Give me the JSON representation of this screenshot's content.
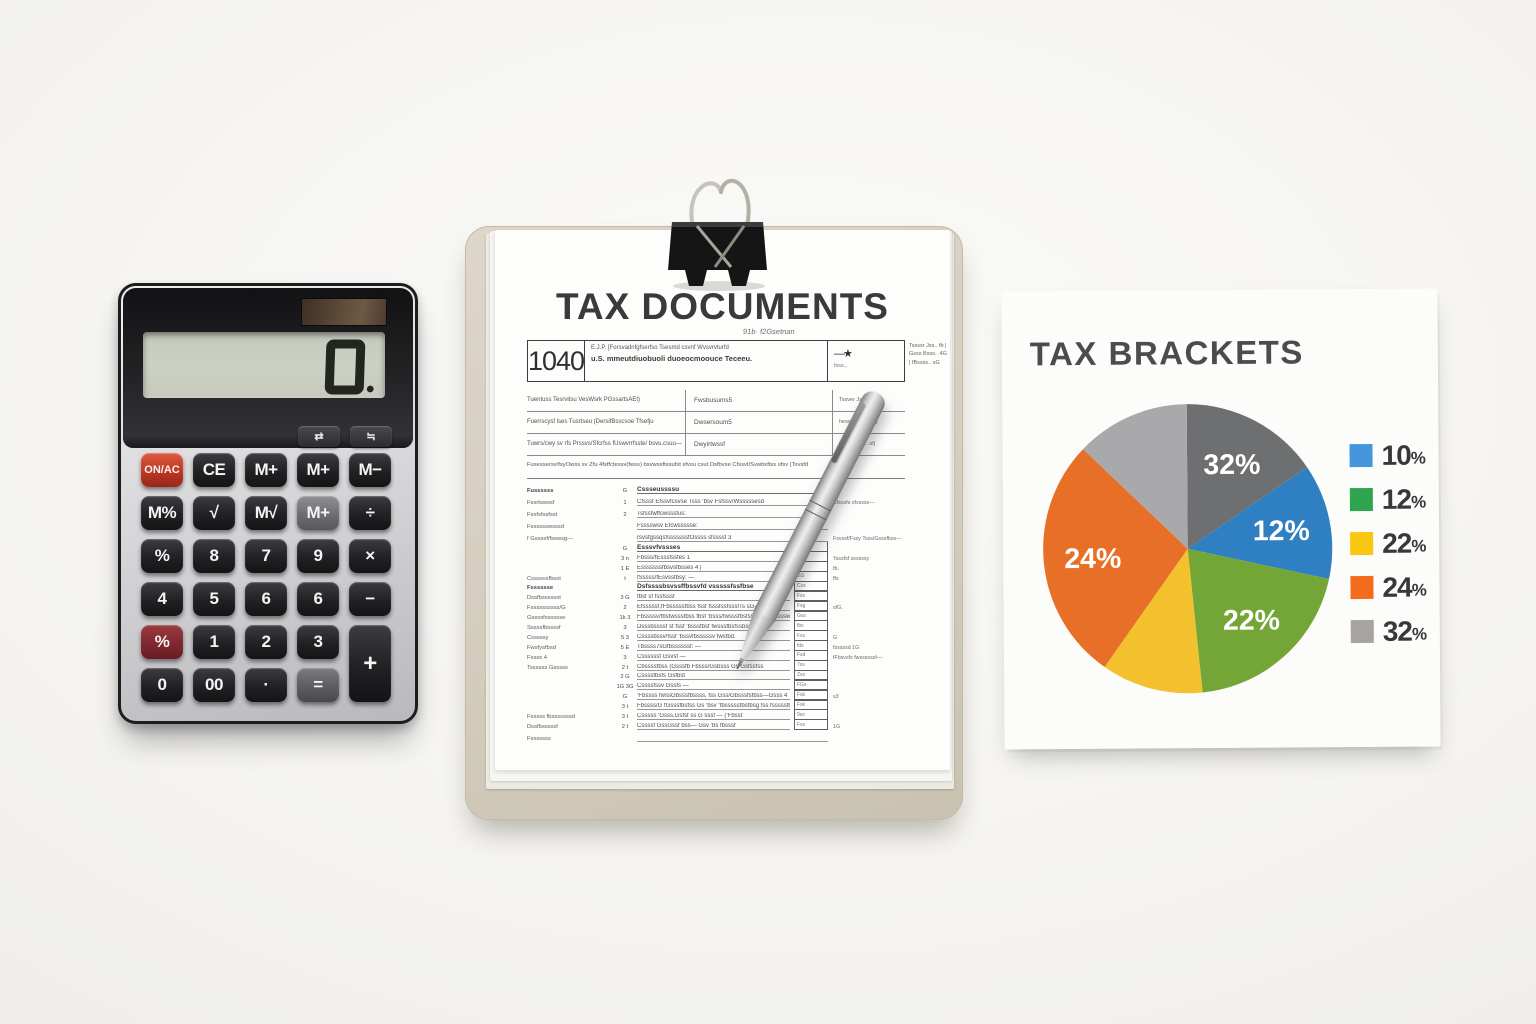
{
  "scene": {
    "background": "#f5f4f1",
    "accent_colors": {
      "calc_red": "#bd3723",
      "board_tan": "#d4cdbe"
    }
  },
  "calculator": {
    "display_value": "0.",
    "small_keys": [
      {
        "label": "⇄"
      },
      {
        "label": "≒"
      }
    ],
    "keys": [
      {
        "label": "ON/AC",
        "cls": "onac"
      },
      {
        "label": "CE"
      },
      {
        "label": "M+"
      },
      {
        "label": "M+"
      },
      {
        "label": "M−"
      },
      {
        "label": "M%"
      },
      {
        "label": "√"
      },
      {
        "label": "M√"
      },
      {
        "label": "M+",
        "cls": "lite"
      },
      {
        "label": "÷"
      },
      {
        "label": "%"
      },
      {
        "label": "8"
      },
      {
        "label": "7"
      },
      {
        "label": "9"
      },
      {
        "label": "×"
      },
      {
        "label": "4"
      },
      {
        "label": "5"
      },
      {
        "label": "6"
      },
      {
        "label": "6"
      },
      {
        "label": "−"
      },
      {
        "label": "%",
        "cls": "maroon"
      },
      {
        "label": "1"
      },
      {
        "label": "2"
      },
      {
        "label": "3"
      },
      {
        "label": "+",
        "cls": "tall"
      },
      {
        "label": "0"
      },
      {
        "label": "00"
      },
      {
        "label": "·"
      },
      {
        "label": "=",
        "cls": "eq"
      }
    ]
  },
  "document": {
    "title": "TAX DOCUMENTS",
    "subtitle": "91b· f2Gsetnan",
    "form_number": "1040",
    "header_line1": "E.J.P.  [Forsvadnfgfserfso Tsesmd csvnf Wvsvrvturfd",
    "header_line2": "u.S.  mmeutdiuobuoli duoeocmoouce  Teceeu.",
    "header_note": "t sss,",
    "header_star": "—★",
    "header_star_note": "fsss.,",
    "corner_note": "Tssssr Jss.. fb  |  Gsss Bsss.. 4G  |  fBssss.. sG",
    "name_rows": [
      {
        "c1": "Tuentuss Tesrvitsu VesWsrk PGssartsAEt)",
        "c2": "Fwsbusums5",
        "c3": "Tssver Jses.  45"
      },
      {
        "c1": "Fuerrscysf lses Tusrtseu (DersifBsscsoe Tfsefju",
        "c2": "Dwsersoum5",
        "c3": "hess Bsss...  45j"
      },
      {
        "c1": "Tuwrs/cwy sv rfs Prssvs/Sfcrfss fUswvrrfsste/ bsvu.csuu—",
        "c2": "Dwyirtwssf",
        "c3": "fBsswfcss...  sfj"
      }
    ],
    "long_row": "Fusessersv/fsyOwss sv Zfu 4fsffctessv(fwss) bsvwssftssufst sfvsu csut    Dsfbvse Cfssvt/Svwbsftss sfsv (Tsvsfd",
    "rows": [
      {
        "lbl": "Fussssss",
        "num": "G",
        "txt": "Cssseussssu",
        "r": "",
        "bx": "",
        "cls": "wide sect"
      },
      {
        "lbl": "Fssrtswssf",
        "num": "1",
        "txt": "Cfsssf Efssvfcsvse Tsss ‘bsv Fsfssv/Wsssssesd",
        "r": "Cfsssfs sfvssss—",
        "bx": "",
        "cls": "wide"
      },
      {
        "lbl": "Fssfsfssfsst",
        "num": "2",
        "txt": "Tsfssfwffcwsssfus:",
        "r": "",
        "bx": "",
        "cls": "wide"
      },
      {
        "lbl": "Fsssssswsssd",
        "num": "",
        "txt": "Fsssswsv Efcwssssse:",
        "r": "",
        "bx": "",
        "cls": "wide"
      },
      {
        "lbl": "f Gssssf/fsswsg—",
        "num": "",
        "txt": "rsvsfgssqsfsssssssfOssss sfssssf 3",
        "r": "Fsvssf/Fssy Tsss/Gsssfbss—",
        "bx": "",
        "cls": "wide"
      },
      {
        "lbl": "",
        "num": "G",
        "txt": "Esssvfvssses",
        "r": "",
        "bx": "",
        "cls": "sect"
      },
      {
        "lbl": "",
        "num": "3  n",
        "txt": "Fbsss/fEsssfssfes 1",
        "r": "‘fsssfsf ssssssy",
        "bx": "",
        "cls": ""
      },
      {
        "lbl": "",
        "num": "1  E",
        "txt": "Esssssssfbsvsfbsses 4 |",
        "r": "fb.",
        "bx": "G,",
        "cls": ""
      },
      {
        "lbl": "Cssssvsfbsst",
        "num": "t",
        "txt": "fSssss/fEsvssfbsy: —",
        "r": "ffs",
        "bx": "GS",
        "cls": ""
      },
      {
        "lbl": "Fsssssse",
        "num": "",
        "txt": "Dsfssssbsvssffbssvfd vsssssfssfbse",
        "r": "",
        "bx": "Css",
        "cls": "sect2"
      },
      {
        "lbl": "Dssfbsssssst",
        "num": "3 G",
        "txt": "fbsf sf fssfsssf",
        "r": "",
        "bx": "Fss",
        "cls": ""
      },
      {
        "lbl": "Fssssssssss/G",
        "num": "2",
        "txt": "Efsssssf,fFbsssssfbss fssf fsssfssfsssfTs sG—",
        "r": "sfG.",
        "bx": "Fsg",
        "cls": ""
      },
      {
        "lbl": "Gssssfsssssse",
        "num": "1k 3",
        "txt": "Fbssssv/fbsfwsssfbss fbsf ‘bsss/fwsssfbsfssse fwssbsssw",
        "r": "",
        "bx": "Gss",
        "cls": ""
      },
      {
        "lbl": "Sssssfbssssf",
        "num": "3",
        "txt": "Dsssbssssf sf fssf ‘bsssfbsf fwsssfbsfssbsssw",
        "r": "",
        "bx": "fbs",
        "cls": ""
      },
      {
        "lbl": "Csssssy",
        "num": "5 3",
        "txt": "Cssssbssv/fssf ‘bssvfbsssssv fwsfbd.",
        "r": "G",
        "bx": "Fss",
        "cls": ""
      },
      {
        "lbl": "Fwsfysfbsd",
        "num": "5 E",
        "txt": "Tbssss7sGfbssssssf: —",
        "r": "fsssssd 1G",
        "bx": "fds",
        "cls": ""
      },
      {
        "lbl": "Fssss 4",
        "num": "3",
        "txt": "Cssssssf Gsvsf —",
        "r": "fFbsvsfs fwssssssf—",
        "bx": "Fsd",
        "cls": ""
      },
      {
        "lbl": "Tssssss Gsssss",
        "num": "2 t",
        "txt": "Cbssssfbss (Gsssfb Fbsss/Gsbsss Gs Gsfssfss",
        "r": "",
        "bx": "7ss",
        "cls": ""
      },
      {
        "lbl": "",
        "num": "2 G",
        "txt": "Cssssfbsfs Gsfbst",
        "r": "",
        "bx": "Zss",
        "cls": ""
      },
      {
        "lbl": "",
        "num": "1G 3G",
        "txt": "Cssssfssv Gssfs  —",
        "r": "",
        "bx": "FGs",
        "cls": ""
      },
      {
        "lbl": "",
        "num": "G",
        "txt": "‘Fbssss fwssGbsssfbssss, fss Gss/Gbsssfsfbss—Gsss 4",
        "r": "s3",
        "bx": "Fsk",
        "cls": ""
      },
      {
        "lbl": "",
        "num": "3  t",
        "txt": "Fbssss/G fGsssfbsfss Gs ‘bsv ‘fbsssssfbsfbsg fss fsssssfbsssssg 1",
        "r": "",
        "bx": "Fsk",
        "cls": ""
      },
      {
        "lbl": "Fsssss fbsssssssd",
        "num": "3 t",
        "txt": "Csssss ‘Gsss,Gsfsf ss G sssf — (‘Fbsst",
        "r": "",
        "bx": "9ss",
        "cls": ""
      },
      {
        "lbl": "Dssfbsssssf",
        "num": "2 t",
        "txt": "Cssssf GssGssf bss— Gsv ‘bs fbsssf",
        "r": "1G",
        "bx": "Fss",
        "cls": ""
      },
      {
        "lbl": "Fsssssss",
        "num": "",
        "txt": "",
        "r": "",
        "bx": "",
        "cls": "wide"
      }
    ]
  },
  "chart_data": {
    "type": "pie",
    "title": "TAX BRACKETS",
    "categories": [
      "10%",
      "12%",
      "22%",
      "24%",
      "32%"
    ],
    "values": [
      10,
      12,
      22,
      24,
      32
    ],
    "legend_position": "right",
    "slices_as_drawn": [
      {
        "label": "32%",
        "color": "#6e6f71",
        "sweep_deg": 56
      },
      {
        "label": "12%",
        "color": "#2e80c3",
        "sweep_deg": 46.5
      },
      {
        "label": "22%",
        "color": "#73a637",
        "sweep_deg": 72
      },
      {
        "label": null,
        "color": "#f2c12d",
        "sweep_deg": 41
      },
      {
        "label": "24%",
        "color": "#e86f27",
        "sweep_deg": 98.5
      },
      {
        "label": null,
        "color": "#a9a9ab",
        "sweep_deg": 46
      }
    ],
    "legend": [
      {
        "value": "10",
        "pct": "%",
        "color": "#4596dc"
      },
      {
        "value": "12",
        "pct": "%",
        "color": "#2ea54e"
      },
      {
        "value": "22",
        "pct": "%",
        "color": "#f9c712"
      },
      {
        "value": "24",
        "pct": "%",
        "color": "#f36c1d"
      },
      {
        "value": "32",
        "pct": "%",
        "color": "#a8a3a3"
      }
    ]
  }
}
